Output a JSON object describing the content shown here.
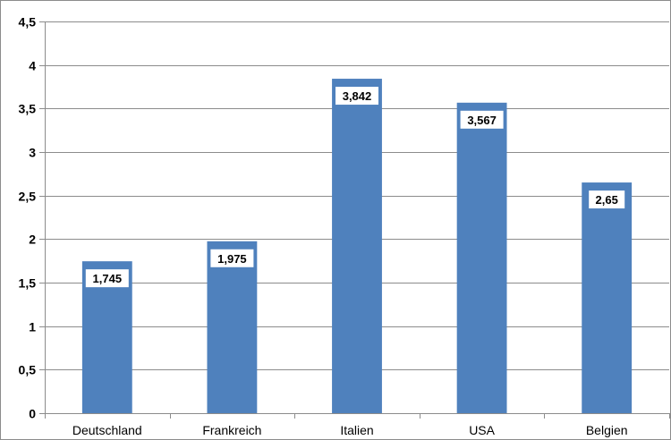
{
  "chart_data": {
    "type": "bar",
    "categories": [
      "Deutschland",
      "Frankreich",
      "Italien",
      "USA",
      "Belgien"
    ],
    "values": [
      1.745,
      1.975,
      3.842,
      3.567,
      2.65
    ],
    "data_labels": [
      "1,745",
      "1,975",
      "3,842",
      "3,567",
      "2,65"
    ],
    "ylim": [
      0,
      4.5
    ],
    "yticks": [
      0,
      0.5,
      1,
      1.5,
      2,
      2.5,
      3,
      3.5,
      4,
      4.5
    ],
    "ytick_labels": [
      "0",
      "0,5",
      "1",
      "1,5",
      "2",
      "2,5",
      "3",
      "3,5",
      "4",
      "4,5"
    ],
    "grid": true,
    "legend": "none",
    "title": "",
    "xlabel": "",
    "ylabel": "",
    "colors": {
      "bar": "#4f81bd",
      "grid": "#8c8c8c",
      "axis": "#8c8c8c",
      "label_box": "#ffffff"
    }
  }
}
